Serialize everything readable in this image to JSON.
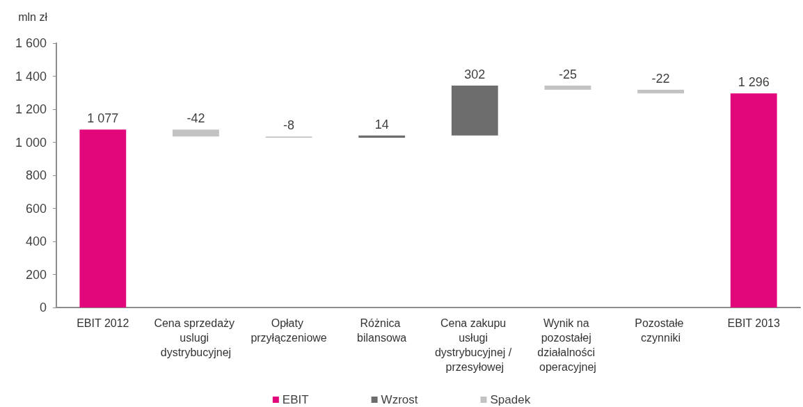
{
  "chart_data": {
    "type": "bar",
    "ylabel": "mln zł",
    "categories": [
      "EBIT 2012",
      "Cena sprzedaży uslugi dystrybucyjnej",
      "Opłaty przyłączeniowe",
      "Różnica bilansowa",
      "Cena zakupu usługi dystrybucyjnej / przesyłowej",
      "Wynik na pozostałej działalności operacyjnej",
      "Pozostałe czynniki",
      "EBIT 2013"
    ],
    "series": [
      {
        "name": "EBIT",
        "color": "#e2077a",
        "values": [
          1077,
          null,
          null,
          null,
          null,
          null,
          null,
          1296
        ],
        "value_labels": [
          "1 077",
          null,
          null,
          null,
          null,
          null,
          null,
          "1 296"
        ]
      },
      {
        "name": "Wzrost",
        "color": "#6d6d6d",
        "values": [
          null,
          null,
          null,
          14,
          302,
          null,
          null,
          null
        ],
        "base": [
          null,
          null,
          null,
          1027,
          1041,
          null,
          null,
          null
        ],
        "value_labels": [
          null,
          null,
          null,
          "14",
          "302",
          null,
          null,
          null
        ]
      },
      {
        "name": "Spadek",
        "color": "#c3c3c3",
        "values": [
          null,
          -42,
          -8,
          null,
          null,
          -25,
          -22,
          null
        ],
        "base": [
          null,
          1077,
          1035,
          null,
          null,
          1343,
          1318,
          null
        ],
        "value_labels": [
          null,
          "-42",
          "-8",
          null,
          null,
          "-25",
          "-22",
          null
        ]
      }
    ],
    "ylim": [
      0,
      1600
    ],
    "yticks": [
      0,
      200,
      400,
      600,
      800,
      {
        "value": 1000,
        "label": "1 000"
      },
      {
        "value": 1200,
        "label": "1 200"
      },
      {
        "value": 1400,
        "label": "1 400"
      },
      {
        "value": 1600,
        "label": "1 600"
      }
    ],
    "legend": "bottom"
  }
}
